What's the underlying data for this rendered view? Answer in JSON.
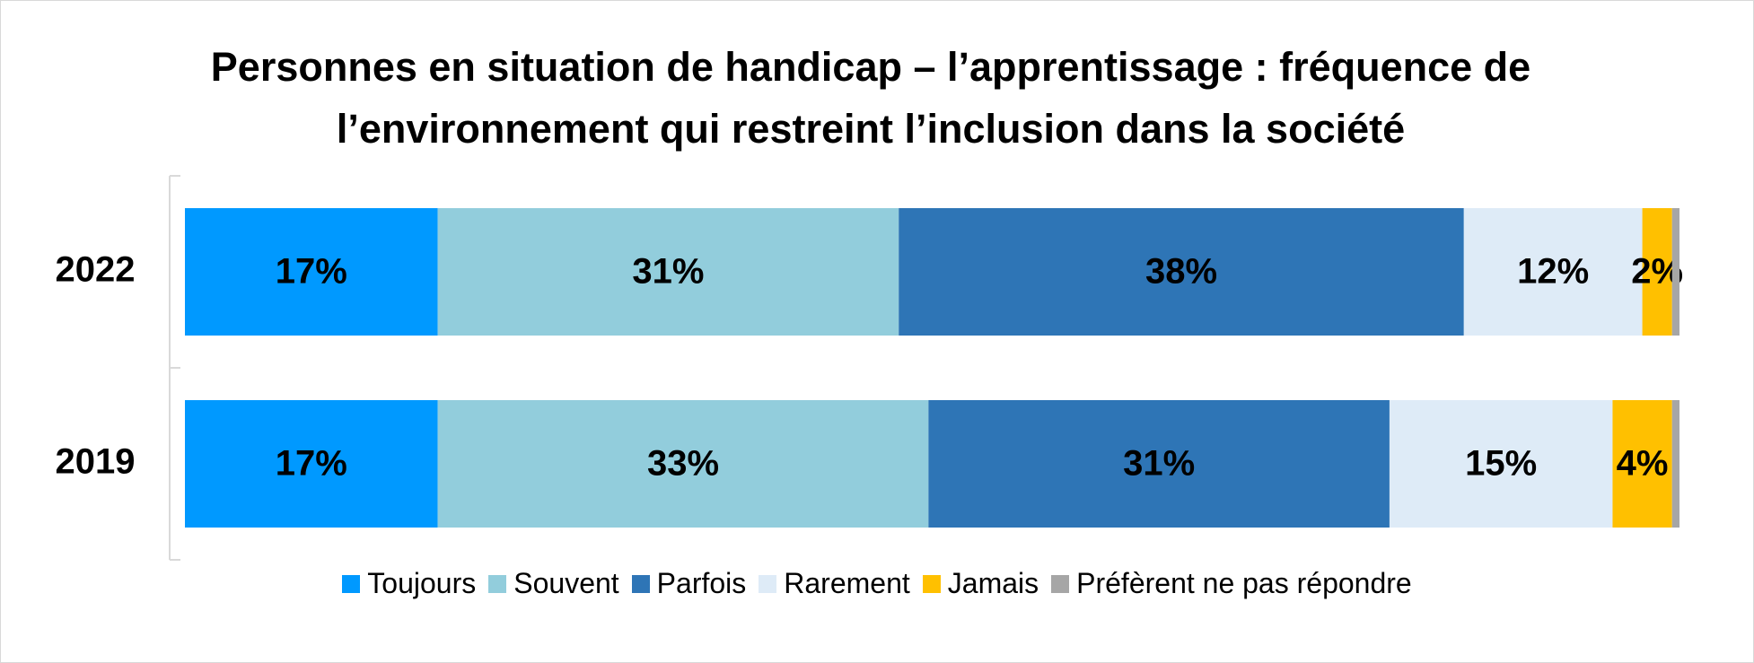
{
  "chart_data": {
    "type": "stacked-bar-horizontal",
    "title": "Personnes en situation de handicap – l’apprentissage : fréquence de l’environnement qui restreint l’inclusion dans la société",
    "categories": [
      "2022",
      "2019"
    ],
    "series": [
      {
        "name": "Toujours",
        "color": "#0099ff",
        "values": [
          17,
          17
        ],
        "value_labels": [
          "17%",
          "17%"
        ]
      },
      {
        "name": "Souvent",
        "color": "#92cddc",
        "values": [
          31,
          33
        ],
        "value_labels": [
          "31%",
          "33%"
        ]
      },
      {
        "name": "Parfois",
        "color": "#2e75b6",
        "values": [
          38,
          31
        ],
        "value_labels": [
          "38%",
          "31%"
        ]
      },
      {
        "name": "Rarement",
        "color": "#deebf7",
        "values": [
          12,
          15
        ],
        "value_labels": [
          "12%",
          "15%"
        ]
      },
      {
        "name": "Jamais",
        "color": "#ffc000",
        "values": [
          2,
          4
        ],
        "value_labels": [
          "2%",
          "4%"
        ]
      },
      {
        "name": "Préfèrent ne pas répondre",
        "color": "#a6a6a6",
        "values": [
          0.5,
          0.5
        ]
      }
    ],
    "legend": "bottom"
  }
}
